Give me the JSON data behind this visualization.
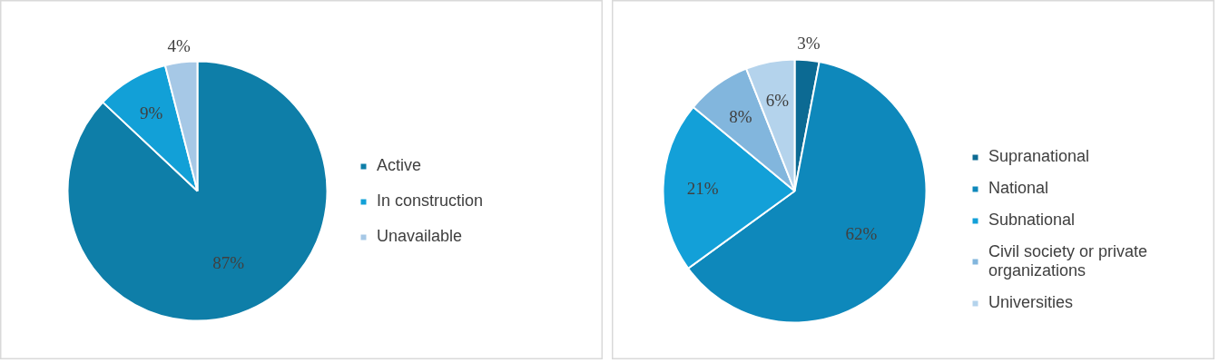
{
  "chart_data": [
    {
      "type": "pie",
      "categories": [
        "Active",
        "In construction",
        "Unavailable"
      ],
      "values": [
        87,
        9,
        4
      ],
      "colors": [
        "#0e7ea8",
        "#12a0d7",
        "#a6c8e6"
      ],
      "value_labels": [
        "87%",
        "9%",
        "4%"
      ],
      "legend": "right"
    },
    {
      "type": "pie",
      "categories": [
        "Supranational",
        "National",
        "Subnational",
        "Civil society or private organizations",
        "Universities"
      ],
      "values": [
        3,
        62,
        21,
        8,
        6
      ],
      "colors": [
        "#0c6a93",
        "#0e88bb",
        "#13a0d8",
        "#82b6dd",
        "#b4d3ec"
      ],
      "value_labels": [
        "3%",
        "62%",
        "21%",
        "8%",
        "6%"
      ],
      "legend": "right"
    }
  ]
}
